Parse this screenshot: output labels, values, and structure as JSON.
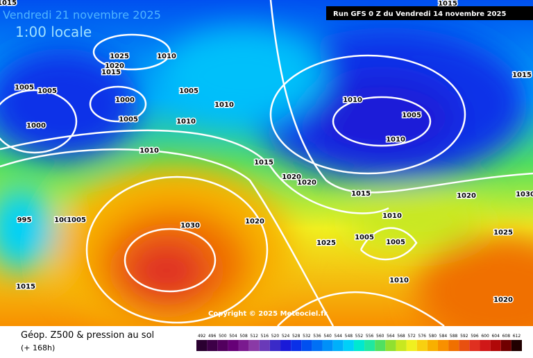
{
  "header": {
    "date": "Vendredi 21 novembre 2025",
    "time": "1:00 locale",
    "run": "Run GFS 0 Z du Vendredi 14 novembre 2025"
  },
  "isobar_labels": [
    "1015",
    "1010",
    "1025",
    "1020",
    "1015",
    "1005",
    "1005",
    "1000",
    "1005",
    "1000",
    "1005",
    "1010",
    "1010",
    "1010",
    "1015",
    "1020",
    "1020",
    "1015",
    "1010",
    "1005",
    "1005",
    "1025",
    "1020",
    "1030",
    "995",
    "1000",
    "1005",
    "1015",
    "1010",
    "1020",
    "1025",
    "1020",
    "1030",
    "1015",
    "1015",
    "1010",
    "1005",
    "1010"
  ],
  "copyright": "Copyright © 2025 Meteociel.fr",
  "legend": {
    "title": "Géop. Z500 & pression au sol",
    "subtitle": "(+ 168h)",
    "scale": [
      {
        "label": "492",
        "color": "#2a0030"
      },
      {
        "label": "496",
        "color": "#3d0047"
      },
      {
        "label": "500",
        "color": "#52005e"
      },
      {
        "label": "504",
        "color": "#660077"
      },
      {
        "label": "508",
        "color": "#7a1a8f"
      },
      {
        "label": "512",
        "color": "#8a3aa6"
      },
      {
        "label": "516",
        "color": "#6a3ab8"
      },
      {
        "label": "520",
        "color": "#3a2ac8"
      },
      {
        "label": "524",
        "color": "#1a1ad8"
      },
      {
        "label": "528",
        "color": "#0a30e8"
      },
      {
        "label": "532",
        "color": "#0050f0"
      },
      {
        "label": "536",
        "color": "#0070f5"
      },
      {
        "label": "540",
        "color": "#0090f8"
      },
      {
        "label": "544",
        "color": "#00b0fa"
      },
      {
        "label": "548",
        "color": "#00d0f8"
      },
      {
        "label": "552",
        "color": "#00e8d0"
      },
      {
        "label": "556",
        "color": "#20e8a0"
      },
      {
        "label": "560",
        "color": "#50e060"
      },
      {
        "label": "564",
        "color": "#90e030"
      },
      {
        "label": "568",
        "color": "#c8e820"
      },
      {
        "label": "572",
        "color": "#f0f020"
      },
      {
        "label": "576",
        "color": "#f8d010"
      },
      {
        "label": "580",
        "color": "#f8b000"
      },
      {
        "label": "584",
        "color": "#f89000"
      },
      {
        "label": "588",
        "color": "#f07000"
      },
      {
        "label": "592",
        "color": "#e85010"
      },
      {
        "label": "596",
        "color": "#e03020"
      },
      {
        "label": "600",
        "color": "#d01818"
      },
      {
        "label": "604",
        "color": "#b00808"
      },
      {
        "label": "608",
        "color": "#700000"
      },
      {
        "label": "612",
        "color": "#200000"
      }
    ]
  }
}
